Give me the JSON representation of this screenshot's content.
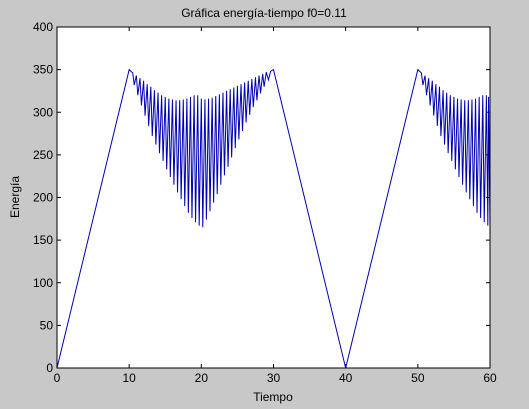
{
  "figure": {
    "background": "#c8c8c8",
    "axes_background": "#ffffff",
    "line_color": "#0000b4"
  },
  "chart_data": {
    "type": "line",
    "title": "Gráfica energía-tiempo f0=0.11",
    "xlabel": "Tiempo",
    "ylabel": "Energía",
    "xlim": [
      0,
      60
    ],
    "ylim": [
      0,
      400
    ],
    "xticks": [
      "0",
      "10",
      "20",
      "30",
      "40",
      "50",
      "60"
    ],
    "yticks": [
      "0",
      "50",
      "100",
      "150",
      "200",
      "250",
      "300",
      "350",
      "400"
    ],
    "grid": false,
    "legend": "none",
    "series": [
      {
        "points": [
          [
            0,
            0
          ],
          [
            10,
            350
          ],
          [
            10.5,
            346
          ],
          [
            10.7,
            332
          ],
          [
            11,
            343
          ],
          [
            11.2,
            320
          ],
          [
            11.5,
            340
          ],
          [
            11.7,
            308
          ],
          [
            12,
            337
          ],
          [
            12.2,
            296
          ],
          [
            12.5,
            333
          ],
          [
            12.7,
            284
          ],
          [
            13,
            330
          ],
          [
            13.2,
            272
          ],
          [
            13.5,
            326
          ],
          [
            13.7,
            262
          ],
          [
            14,
            323
          ],
          [
            14.2,
            252
          ],
          [
            14.5,
            320
          ],
          [
            14.7,
            243
          ],
          [
            15,
            318
          ],
          [
            15.2,
            233
          ],
          [
            15.5,
            316
          ],
          [
            15.7,
            224
          ],
          [
            16,
            315
          ],
          [
            16.2,
            215
          ],
          [
            16.5,
            314
          ],
          [
            16.7,
            206
          ],
          [
            17,
            314
          ],
          [
            17.2,
            198
          ],
          [
            17.5,
            315
          ],
          [
            17.7,
            190
          ],
          [
            18,
            316
          ],
          [
            18.2,
            182
          ],
          [
            18.5,
            318
          ],
          [
            18.7,
            176
          ],
          [
            19,
            320
          ],
          [
            19.2,
            171
          ],
          [
            19.5,
            320
          ],
          [
            19.7,
            167
          ],
          [
            20,
            316
          ],
          [
            20.2,
            165
          ],
          [
            20.5,
            315
          ],
          [
            20.7,
            174
          ],
          [
            21,
            316
          ],
          [
            21.2,
            184
          ],
          [
            21.5,
            317
          ],
          [
            21.7,
            194
          ],
          [
            22,
            319
          ],
          [
            22.2,
            204
          ],
          [
            22.5,
            321
          ],
          [
            22.7,
            215
          ],
          [
            23,
            323
          ],
          [
            23.2,
            226
          ],
          [
            23.5,
            325
          ],
          [
            23.7,
            236
          ],
          [
            24,
            327
          ],
          [
            24.2,
            247
          ],
          [
            24.5,
            329
          ],
          [
            24.7,
            258
          ],
          [
            25,
            331
          ],
          [
            25.2,
            268
          ],
          [
            25.5,
            333
          ],
          [
            25.7,
            278
          ],
          [
            26,
            335
          ],
          [
            26.2,
            288
          ],
          [
            26.5,
            337
          ],
          [
            26.7,
            297
          ],
          [
            27,
            339
          ],
          [
            27.2,
            306
          ],
          [
            27.5,
            341
          ],
          [
            27.7,
            314
          ],
          [
            28,
            343
          ],
          [
            28.2,
            322
          ],
          [
            28.5,
            345
          ],
          [
            28.7,
            330
          ],
          [
            29,
            347
          ],
          [
            29.3,
            338
          ],
          [
            29.6,
            348
          ],
          [
            30,
            350
          ],
          [
            40,
            0
          ],
          [
            50,
            350
          ],
          [
            50.5,
            346
          ],
          [
            50.7,
            332
          ],
          [
            51,
            343
          ],
          [
            51.2,
            320
          ],
          [
            51.5,
            340
          ],
          [
            51.7,
            308
          ],
          [
            52,
            337
          ],
          [
            52.2,
            296
          ],
          [
            52.5,
            333
          ],
          [
            52.7,
            284
          ],
          [
            53,
            330
          ],
          [
            53.2,
            272
          ],
          [
            53.5,
            326
          ],
          [
            53.7,
            262
          ],
          [
            54,
            323
          ],
          [
            54.2,
            252
          ],
          [
            54.5,
            320
          ],
          [
            54.7,
            243
          ],
          [
            55,
            318
          ],
          [
            55.2,
            233
          ],
          [
            55.5,
            316
          ],
          [
            55.7,
            224
          ],
          [
            56,
            315
          ],
          [
            56.2,
            215
          ],
          [
            56.5,
            314
          ],
          [
            56.7,
            206
          ],
          [
            57,
            314
          ],
          [
            57.2,
            198
          ],
          [
            57.5,
            315
          ],
          [
            57.7,
            190
          ],
          [
            58,
            316
          ],
          [
            58.2,
            182
          ],
          [
            58.5,
            318
          ],
          [
            58.7,
            176
          ],
          [
            59,
            320
          ],
          [
            59.2,
            171
          ],
          [
            59.5,
            320
          ],
          [
            59.7,
            167
          ],
          [
            59.8,
            318
          ],
          [
            60,
            165
          ]
        ]
      }
    ]
  }
}
